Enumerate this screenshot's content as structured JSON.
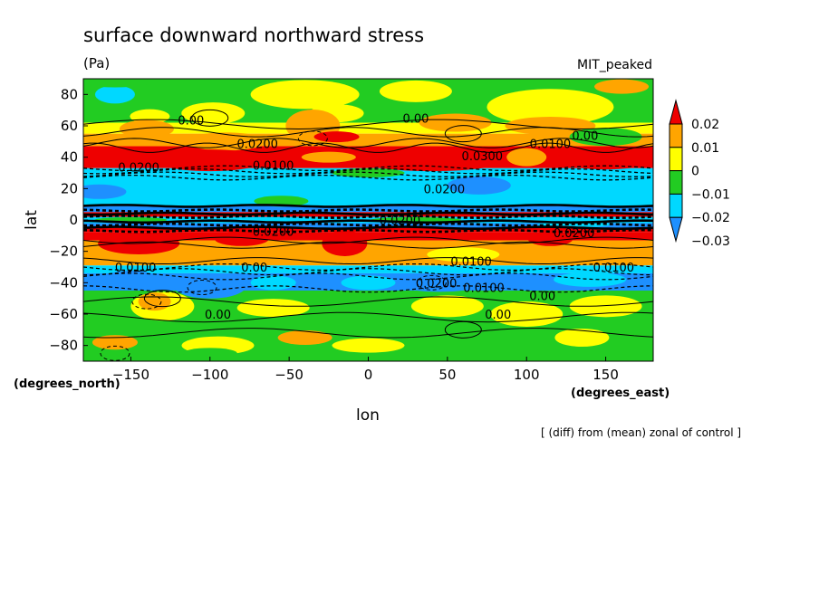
{
  "chart_data": {
    "type": "heatmap",
    "title": "surface downward northward stress",
    "units": "(Pa)",
    "run_label": "MIT_peaked",
    "xlabel": "lon",
    "ylabel": "lat",
    "x_units": "(degrees_east)",
    "y_units": "(degrees_north)",
    "footnote": "[ (diff) from (mean) zonal of control ]",
    "xlim": [
      -180,
      180
    ],
    "ylim": [
      -90,
      90
    ],
    "x_ticks": [
      -150,
      -100,
      -50,
      0,
      50,
      100,
      150
    ],
    "y_ticks": [
      80,
      60,
      40,
      20,
      0,
      -20,
      -40,
      -60,
      -80
    ],
    "grid": false,
    "colorbar": {
      "levels": [
        -0.03,
        -0.02,
        -0.01,
        0,
        0.01,
        0.02
      ],
      "level_labels": [
        "0.02",
        "0.01",
        "0",
        "−0.01",
        "−0.02",
        "−0.03"
      ],
      "colors_low_to_high": [
        "#1e90ff",
        "#00d8ff",
        "#22cc22",
        "#ffff00",
        "#ffa500",
        "#ee0000"
      ]
    },
    "zonal_bands": [
      {
        "lat_from": 90,
        "lat_to": 62,
        "bin": "0 to 0.01"
      },
      {
        "lat_from": 62,
        "lat_to": 55,
        "bin": "0.01 to 0.02"
      },
      {
        "lat_from": 55,
        "lat_to": 33,
        "bin": "above 0.02"
      },
      {
        "lat_from": 33,
        "lat_to": 8,
        "bin": "-0.02 to -0.01"
      },
      {
        "lat_from": 8,
        "lat_to": -8,
        "bin": "mixed, strong"
      },
      {
        "lat_from": -8,
        "lat_to": -30,
        "bin": "0.01 to 0.02"
      },
      {
        "lat_from": -30,
        "lat_to": -45,
        "bin": "-0.03 to -0.02"
      },
      {
        "lat_from": -45,
        "lat_to": -90,
        "bin": "-0.01 to 0"
      }
    ],
    "contour_labels": [
      {
        "text": "0.00",
        "lon": -112,
        "lat": 61
      },
      {
        "text": "0.0200",
        "lon": -70,
        "lat": 46
      },
      {
        "text": "0.0100",
        "lon": -60,
        "lat": 32
      },
      {
        "text": "0.0200",
        "lon": -145,
        "lat": 31
      },
      {
        "text": "0.00",
        "lon": 30,
        "lat": 62
      },
      {
        "text": "0.0300",
        "lon": 72,
        "lat": 38
      },
      {
        "text": "0.0100",
        "lon": 115,
        "lat": 46
      },
      {
        "text": "0.00",
        "lon": 137,
        "lat": 51
      },
      {
        "text": "0.0200",
        "lon": 48,
        "lat": 17
      },
      {
        "text": "0.0200",
        "lon": -60,
        "lat": -10
      },
      {
        "text": "0.0200",
        "lon": 20,
        "lat": -3
      },
      {
        "text": "0.0100",
        "lon": -147,
        "lat": -33
      },
      {
        "text": "0.00",
        "lon": -72,
        "lat": -33
      },
      {
        "text": "0.0100",
        "lon": 65,
        "lat": -29
      },
      {
        "text": "0.0200",
        "lon": 130,
        "lat": -11
      },
      {
        "text": "0.0200",
        "lon": 43,
        "lat": -43
      },
      {
        "text": "0.0100",
        "lon": 73,
        "lat": -46
      },
      {
        "text": "0.00",
        "lon": 110,
        "lat": -51
      },
      {
        "text": "0.00",
        "lon": 82,
        "lat": -63
      },
      {
        "text": "0.00",
        "lon": -95,
        "lat": -63
      },
      {
        "text": "0.0100",
        "lon": 155,
        "lat": -33
      }
    ]
  }
}
